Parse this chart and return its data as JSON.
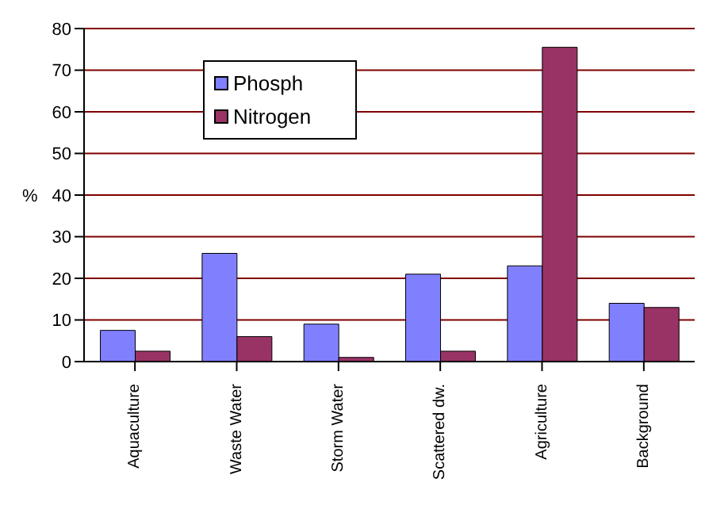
{
  "chart_data": {
    "type": "bar",
    "ylabel": "%",
    "categories": [
      "Aquaculture",
      "Waste Water",
      "Storm Water",
      "Scattered dw.",
      "Agriculture",
      "Background"
    ],
    "series": [
      {
        "name": "Phosph",
        "color": "#8080ff",
        "values": [
          7.5,
          26,
          9,
          21,
          23,
          14
        ]
      },
      {
        "name": "Nitrogen",
        "color": "#993366",
        "values": [
          2.5,
          6,
          1,
          2.5,
          75.5,
          13
        ]
      }
    ],
    "ylim": [
      0,
      80
    ],
    "yticks": [
      0,
      10,
      20,
      30,
      40,
      50,
      60,
      70,
      80
    ],
    "grid": "y",
    "legend": "top left"
  }
}
